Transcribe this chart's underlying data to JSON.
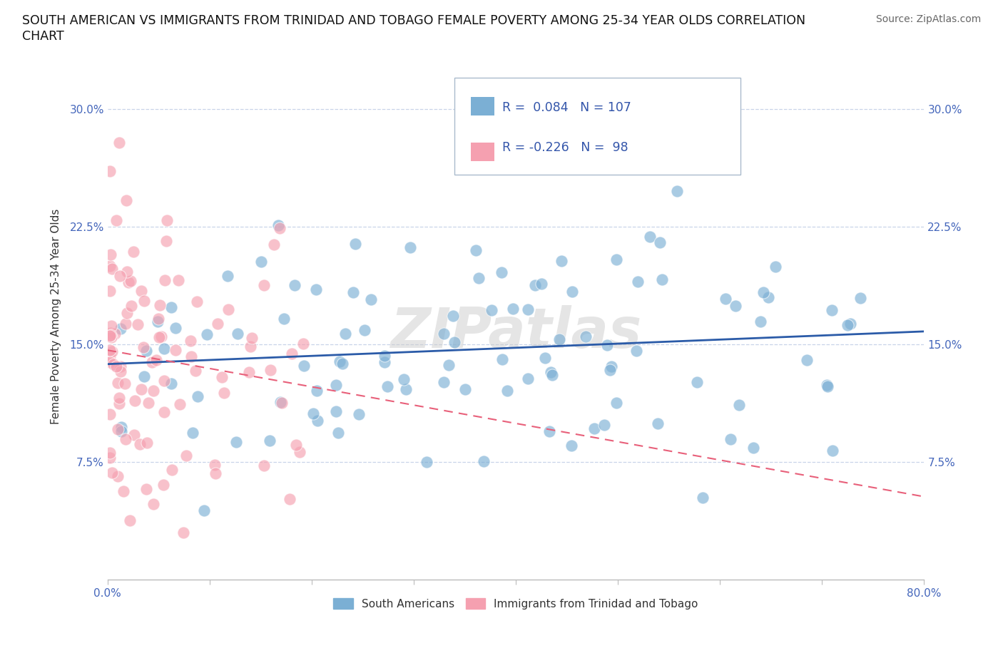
{
  "title_line1": "SOUTH AMERICAN VS IMMIGRANTS FROM TRINIDAD AND TOBAGO FEMALE POVERTY AMONG 25-34 YEAR OLDS CORRELATION",
  "title_line2": "CHART",
  "source": "Source: ZipAtlas.com",
  "ylabel": "Female Poverty Among 25-34 Year Olds",
  "xlim": [
    0.0,
    0.8
  ],
  "ylim": [
    0.0,
    0.335
  ],
  "yticks": [
    0.0,
    0.075,
    0.15,
    0.225,
    0.3
  ],
  "ytick_labels": [
    "",
    "7.5%",
    "15.0%",
    "22.5%",
    "30.0%"
  ],
  "xtick_positions": [
    0.0,
    0.1,
    0.2,
    0.3,
    0.4,
    0.5,
    0.6,
    0.7,
    0.8
  ],
  "xaxis_left_label": "0.0%",
  "xaxis_right_label": "80.0%",
  "blue_color": "#7BAfd4",
  "pink_color": "#F5A0B0",
  "blue_line_color": "#2B5BA8",
  "pink_line_color": "#E8607A",
  "pink_line_style": "dashed",
  "R_blue": 0.084,
  "N_blue": 107,
  "R_pink": -0.226,
  "N_pink": 98,
  "legend_label_blue": "South Americans",
  "legend_label_pink": "Immigrants from Trinidad and Tobago",
  "watermark": "ZIPatlas",
  "grid_color": "#C8D4E8",
  "spine_color": "#BBBBBB"
}
